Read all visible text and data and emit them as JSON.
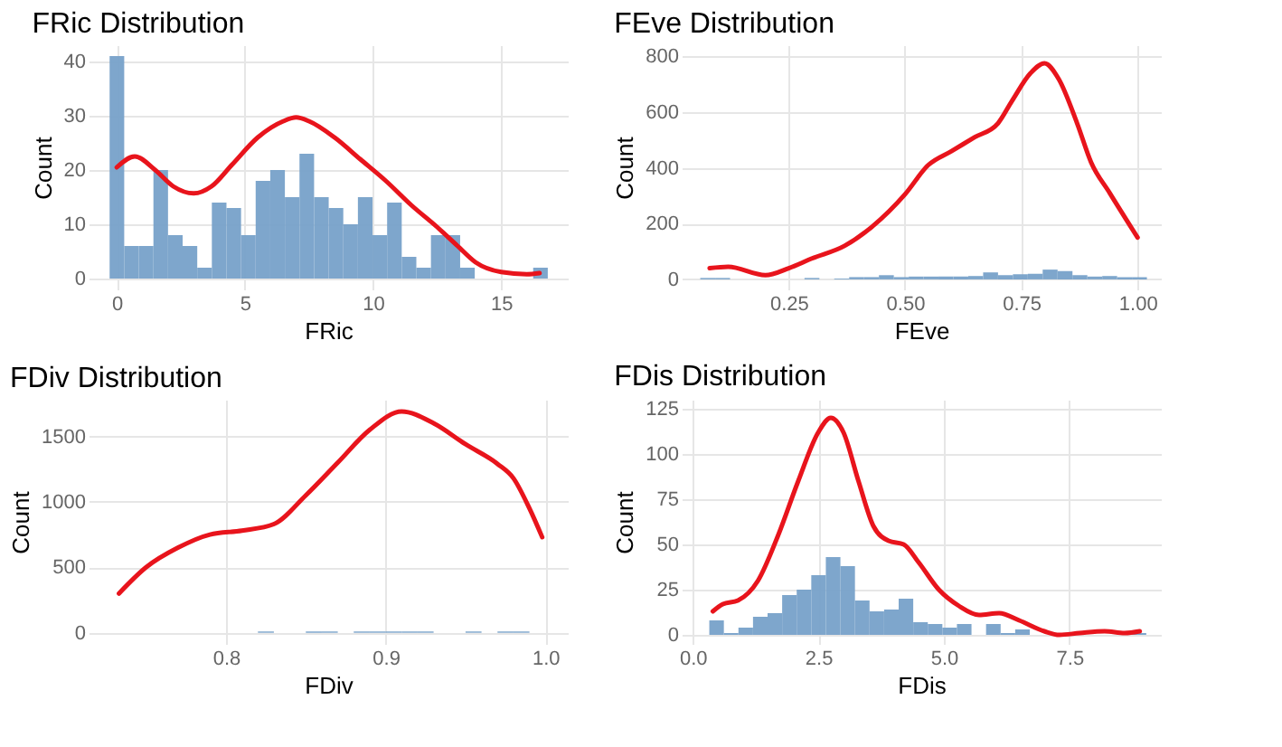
{
  "chart_data": [
    {
      "type": "histogram",
      "title": "FRic Distribution",
      "xlabel": "FRic",
      "ylabel": "Count",
      "xlim": [
        -1.1,
        17.6
      ],
      "ylim": [
        -2,
        43
      ],
      "xticks": [
        0,
        5,
        10,
        15
      ],
      "yticks": [
        0,
        10,
        20,
        30,
        40
      ],
      "grid": true,
      "series": [
        {
          "type": "histogram",
          "color": "#77a1c9",
          "bins": [
            -0.28,
            0.29,
            0.86,
            1.43,
            2.0,
            2.57,
            3.14,
            3.71,
            4.28,
            4.85,
            5.42,
            5.99,
            6.56,
            7.13,
            7.7,
            8.27,
            8.84,
            9.41,
            9.98,
            10.55,
            11.12,
            11.69,
            12.26,
            12.83,
            13.4,
            13.97,
            14.54,
            15.11,
            15.68,
            16.25,
            16.82
          ],
          "values": [
            41,
            6,
            6,
            20,
            8,
            6,
            2,
            14,
            13,
            8,
            18,
            20,
            15,
            23,
            15,
            13,
            10,
            15,
            8,
            14,
            4,
            2,
            8,
            8,
            2,
            0,
            0,
            0,
            0,
            2
          ]
        },
        {
          "type": "line",
          "color": "#e8141c",
          "x": [
            0,
            0.7,
            1.5,
            2.2,
            3.0,
            3.7,
            4.5,
            5.5,
            6.5,
            7.0,
            7.5,
            8.5,
            9.5,
            10.5,
            11.5,
            12.5,
            13.3,
            14,
            15,
            16,
            16.5
          ],
          "values": [
            20.5,
            22.5,
            20,
            17,
            15.7,
            17,
            21,
            26,
            29,
            29.7,
            29,
            26,
            22,
            18,
            13.5,
            9.5,
            6,
            3,
            1.2,
            0.8,
            1
          ]
        }
      ]
    },
    {
      "type": "histogram",
      "title": "FEve Distribution",
      "xlabel": "FEve",
      "ylabel": "Count",
      "xlim": [
        0.02,
        1.05
      ],
      "ylim": [
        -36,
        840
      ],
      "xticks": [
        {
          "value": 0.25,
          "label": "0.25"
        },
        {
          "value": 0.5,
          "label": "0.50"
        },
        {
          "value": 0.75,
          "label": "0.75"
        },
        {
          "value": 1.0,
          "label": "1.00"
        }
      ],
      "yticks": [
        0,
        200,
        400,
        600,
        800
      ],
      "grid": true,
      "series": [
        {
          "type": "histogram",
          "color": "#77a1c9",
          "bins": [
            0.06,
            0.092,
            0.124,
            0.156,
            0.188,
            0.22,
            0.252,
            0.284,
            0.316,
            0.348,
            0.38,
            0.412,
            0.444,
            0.476,
            0.508,
            0.54,
            0.572,
            0.604,
            0.636,
            0.668,
            0.7,
            0.732,
            0.764,
            0.796,
            0.828,
            0.86,
            0.892,
            0.924,
            0.956,
            0.988,
            1.02
          ],
          "values": [
            5,
            5,
            0,
            0,
            0,
            0,
            0,
            5,
            0,
            3,
            8,
            8,
            15,
            8,
            10,
            10,
            10,
            10,
            12,
            25,
            15,
            18,
            20,
            35,
            30,
            15,
            10,
            12,
            8,
            8
          ]
        },
        {
          "type": "line",
          "color": "#e8141c",
          "x": [
            0.08,
            0.12,
            0.2,
            0.25,
            0.3,
            0.37,
            0.43,
            0.5,
            0.55,
            0.6,
            0.65,
            0.7,
            0.73,
            0.77,
            0.8,
            0.83,
            0.87,
            0.9,
            0.94,
            1.0
          ],
          "values": [
            40,
            45,
            15,
            40,
            75,
            120,
            190,
            305,
            410,
            460,
            510,
            560,
            640,
            740,
            775,
            720,
            560,
            420,
            310,
            150
          ]
        }
      ]
    },
    {
      "type": "histogram",
      "title": "FDiv Distribution",
      "xlabel": "FDiv",
      "ylabel": "Count",
      "xlim": [
        0.714,
        1.014
      ],
      "ylim": [
        -85,
        1780
      ],
      "xticks": [
        {
          "value": 0.8,
          "label": "0.8"
        },
        {
          "value": 0.9,
          "label": "0.9"
        },
        {
          "value": 1.0,
          "label": "1.0"
        }
      ],
      "yticks": [
        0,
        500,
        1000,
        1500
      ],
      "grid": true,
      "series": [
        {
          "type": "histogram",
          "color": "#77a1c9",
          "bins": [
            0.82,
            0.83,
            0.84,
            0.85,
            0.86,
            0.87,
            0.88,
            0.89,
            0.9,
            0.91,
            0.92,
            0.93,
            0.94,
            0.95,
            0.96,
            0.97,
            0.98,
            0.99
          ],
          "values": [
            10,
            0,
            0,
            10,
            10,
            0,
            10,
            10,
            10,
            10,
            10,
            0,
            0,
            10,
            0,
            10,
            10
          ]
        },
        {
          "type": "line",
          "color": "#e8141c",
          "x": [
            0.733,
            0.75,
            0.77,
            0.79,
            0.81,
            0.83,
            0.85,
            0.87,
            0.89,
            0.91,
            0.93,
            0.95,
            0.97,
            0.98,
            0.99,
            0.998
          ],
          "values": [
            300,
            500,
            650,
            750,
            780,
            830,
            1050,
            1300,
            1550,
            1690,
            1600,
            1440,
            1290,
            1180,
            950,
            730
          ]
        }
      ]
    },
    {
      "type": "histogram",
      "title": "FDis Distribution",
      "xlabel": "FDis",
      "ylabel": "Count",
      "xlim": [
        -0.22,
        9.32
      ],
      "ylim": [
        -5,
        130
      ],
      "xticks": [
        {
          "value": 0,
          "label": "0.0"
        },
        {
          "value": 2.5,
          "label": "2.5"
        },
        {
          "value": 5,
          "label": "5.0"
        },
        {
          "value": 7.5,
          "label": "7.5"
        }
      ],
      "yticks": [
        0,
        25,
        50,
        75,
        100,
        125
      ],
      "grid": true,
      "series": [
        {
          "type": "histogram",
          "color": "#77a1c9",
          "bins": [
            0.33,
            0.62,
            0.91,
            1.2,
            1.49,
            1.78,
            2.07,
            2.36,
            2.65,
            2.94,
            3.23,
            3.52,
            3.81,
            4.1,
            4.39,
            4.68,
            4.97,
            5.26,
            5.55,
            5.84,
            6.13,
            6.42,
            6.71,
            7.0,
            7.29,
            7.58,
            7.87,
            8.16,
            8.45,
            8.74,
            9.03
          ],
          "values": [
            8,
            1,
            4,
            10,
            12,
            22,
            25,
            33,
            43,
            38,
            19,
            13,
            14,
            20,
            7,
            6,
            4,
            6,
            0,
            6,
            1,
            3,
            0,
            0,
            0,
            0,
            0,
            0,
            0,
            1
          ]
        },
        {
          "type": "line",
          "color": "#e8141c",
          "x": [
            0.4,
            0.6,
            0.9,
            1.3,
            1.7,
            2.1,
            2.5,
            2.75,
            3.0,
            3.3,
            3.6,
            3.9,
            4.2,
            4.5,
            4.9,
            5.3,
            5.7,
            6.1,
            6.5,
            7.0,
            7.3,
            7.7,
            8.2,
            8.6,
            8.9
          ],
          "values": [
            13,
            17,
            19,
            30,
            55,
            85,
            112,
            120,
            112,
            85,
            60,
            52,
            50,
            40,
            25,
            16,
            11,
            12,
            8,
            2,
            0,
            1,
            2,
            1,
            2
          ]
        }
      ]
    }
  ]
}
